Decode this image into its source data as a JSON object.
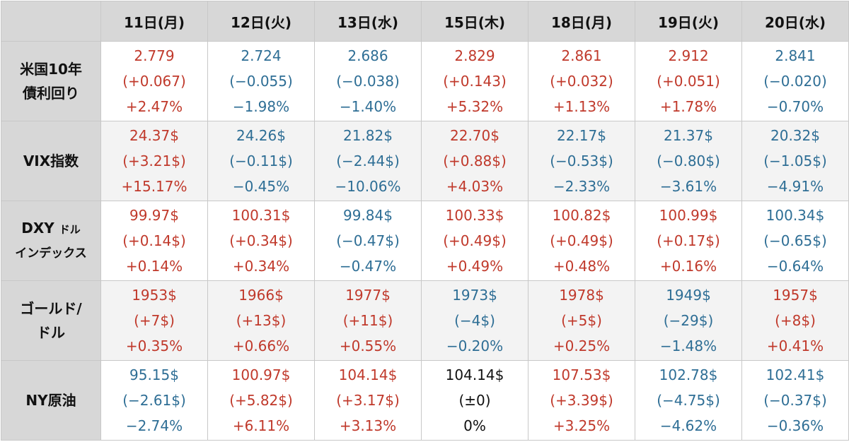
{
  "header": {
    "days": [
      "11日(月)",
      "12日(火)",
      "13日(水)",
      "15日(木)",
      "18日(月)",
      "19日(火)",
      "20日(水)"
    ]
  },
  "colors": {
    "up": "#c0392b",
    "down": "#2e6e95",
    "flat": "#111111",
    "header_bg": "#d7d7d7"
  },
  "rows": [
    {
      "label_lines": [
        "米国10年",
        "債利回り"
      ],
      "cells": [
        {
          "value": "2.779",
          "change": "(+0.067)",
          "pct": "+2.47%",
          "dir": "up"
        },
        {
          "value": "2.724",
          "change": "(−0.055)",
          "pct": "−1.98%",
          "dir": "down"
        },
        {
          "value": "2.686",
          "change": "(−0.038)",
          "pct": "−1.40%",
          "dir": "down"
        },
        {
          "value": "2.829",
          "change": "(+0.143)",
          "pct": "+5.32%",
          "dir": "up"
        },
        {
          "value": "2.861",
          "change": "(+0.032)",
          "pct": "+1.13%",
          "dir": "up"
        },
        {
          "value": "2.912",
          "change": "(+0.051)",
          "pct": "+1.78%",
          "dir": "up"
        },
        {
          "value": "2.841",
          "change": "(−0.020)",
          "pct": "−0.70%",
          "dir": "down"
        }
      ]
    },
    {
      "label_lines": [
        "VIX指数"
      ],
      "cells": [
        {
          "value": "24.37$",
          "change": "(+3.21$)",
          "pct": "+15.17%",
          "dir": "up"
        },
        {
          "value": "24.26$",
          "change": "(−0.11$)",
          "pct": "−0.45%",
          "dir": "down"
        },
        {
          "value": "21.82$",
          "change": "(−2.44$)",
          "pct": "−10.06%",
          "dir": "down"
        },
        {
          "value": "22.70$",
          "change": "(+0.88$)",
          "pct": "+4.03%",
          "dir": "up"
        },
        {
          "value": "22.17$",
          "change": "(−0.53$)",
          "pct": "−2.33%",
          "dir": "down"
        },
        {
          "value": "21.37$",
          "change": "(−0.80$)",
          "pct": "−3.61%",
          "dir": "down"
        },
        {
          "value": "20.32$",
          "change": "(−1.05$)",
          "pct": "−4.91%",
          "dir": "down"
        }
      ]
    },
    {
      "label_lines": [
        "DXY",
        "ドル",
        "インデックス"
      ],
      "cells": [
        {
          "value": "99.97$",
          "change": "(+0.14$)",
          "pct": "+0.14%",
          "dir": "up"
        },
        {
          "value": "100.31$",
          "change": "(+0.34$)",
          "pct": "+0.34%",
          "dir": "up"
        },
        {
          "value": "99.84$",
          "change": "(−0.47$)",
          "pct": "−0.47%",
          "dir": "down"
        },
        {
          "value": "100.33$",
          "change": "(+0.49$)",
          "pct": "+0.49%",
          "dir": "up"
        },
        {
          "value": "100.82$",
          "change": "(+0.49$)",
          "pct": "+0.48%",
          "dir": "up"
        },
        {
          "value": "100.99$",
          "change": "(+0.17$)",
          "pct": "+0.16%",
          "dir": "up"
        },
        {
          "value": "100.34$",
          "change": "(−0.65$)",
          "pct": "−0.64%",
          "dir": "down"
        }
      ]
    },
    {
      "label_lines": [
        "ゴールド/",
        "ドル"
      ],
      "cells": [
        {
          "value": "1953$",
          "change": "(+7$)",
          "pct": "+0.35%",
          "dir": "up"
        },
        {
          "value": "1966$",
          "change": "(+13$)",
          "pct": "+0.66%",
          "dir": "up"
        },
        {
          "value": "1977$",
          "change": "(+11$)",
          "pct": "+0.55%",
          "dir": "up"
        },
        {
          "value": "1973$",
          "change": "(−4$)",
          "pct": "−0.20%",
          "dir": "down"
        },
        {
          "value": "1978$",
          "change": "(+5$)",
          "pct": "+0.25%",
          "dir": "up"
        },
        {
          "value": "1949$",
          "change": "(−29$)",
          "pct": "−1.48%",
          "dir": "down"
        },
        {
          "value": "1957$",
          "change": "(+8$)",
          "pct": "+0.41%",
          "dir": "up"
        }
      ]
    },
    {
      "label_lines": [
        "NY原油"
      ],
      "cells": [
        {
          "value": "95.15$",
          "change": "(−2.61$)",
          "pct": "−2.74%",
          "dir": "down"
        },
        {
          "value": "100.97$",
          "change": "(+5.82$)",
          "pct": "+6.11%",
          "dir": "up"
        },
        {
          "value": "104.14$",
          "change": "(+3.17$)",
          "pct": "+3.13%",
          "dir": "up"
        },
        {
          "value": "104.14$",
          "change": "(±0)",
          "pct": "0%",
          "dir": "flat"
        },
        {
          "value": "107.53$",
          "change": "(+3.39$)",
          "pct": "+3.25%",
          "dir": "up"
        },
        {
          "value": "102.78$",
          "change": "(−4.75$)",
          "pct": "−4.62%",
          "dir": "down"
        },
        {
          "value": "102.41$",
          "change": "(−0.37$)",
          "pct": "−0.36%",
          "dir": "down"
        }
      ]
    }
  ]
}
